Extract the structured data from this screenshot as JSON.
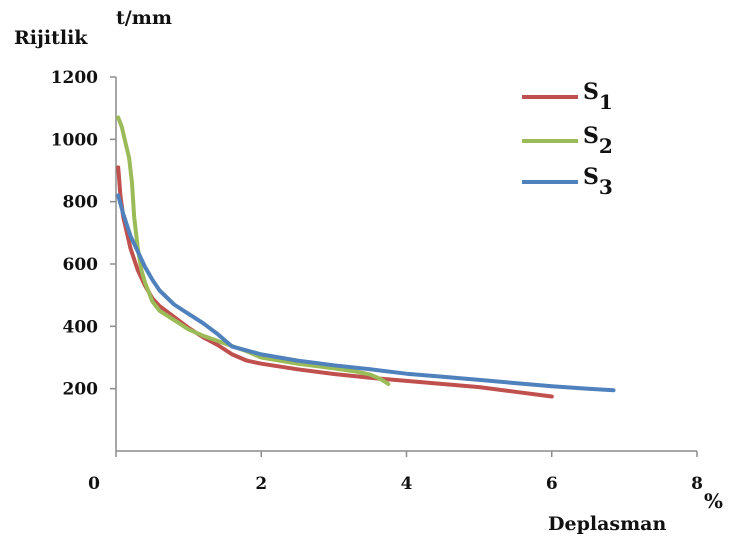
{
  "chart_data": {
    "type": "line",
    "title": "",
    "ylabel": "Rijitlik",
    "ylabel_unit": "t/mm",
    "xlabel": "Deplasman",
    "xlabel_unit": "%",
    "xlim": [
      0,
      8
    ],
    "ylim": [
      0,
      1200
    ],
    "x_ticks": [
      0,
      2,
      4,
      6,
      8
    ],
    "y_ticks": [
      200,
      400,
      600,
      800,
      1000,
      1200
    ],
    "grid": false,
    "legend_position": "top-right",
    "series": [
      {
        "name": "S",
        "subscript": "1",
        "color": "#c0504d",
        "x": [
          0.03,
          0.06,
          0.1,
          0.15,
          0.2,
          0.3,
          0.4,
          0.5,
          0.6,
          0.8,
          1.0,
          1.2,
          1.4,
          1.6,
          1.8,
          2.0,
          2.5,
          3.0,
          3.5,
          4.0,
          4.5,
          5.0,
          5.5,
          6.0
        ],
        "y": [
          910,
          820,
          750,
          700,
          650,
          580,
          530,
          490,
          465,
          430,
          395,
          365,
          340,
          310,
          290,
          280,
          262,
          247,
          235,
          225,
          215,
          205,
          190,
          175
        ]
      },
      {
        "name": "S",
        "subscript": "2",
        "color": "#9bbb59",
        "x": [
          0.03,
          0.08,
          0.13,
          0.18,
          0.22,
          0.25,
          0.3,
          0.35,
          0.4,
          0.5,
          0.6,
          0.8,
          1.0,
          1.2,
          1.5,
          1.8,
          2.0,
          2.5,
          3.0,
          3.3,
          3.5,
          3.65,
          3.75
        ],
        "y": [
          1070,
          1040,
          990,
          940,
          860,
          750,
          650,
          580,
          540,
          480,
          450,
          420,
          390,
          370,
          345,
          320,
          300,
          280,
          265,
          255,
          245,
          230,
          215
        ]
      },
      {
        "name": "S",
        "subscript": "3",
        "color": "#4f81bd",
        "x": [
          0.03,
          0.1,
          0.2,
          0.3,
          0.4,
          0.5,
          0.6,
          0.8,
          1.0,
          1.2,
          1.4,
          1.6,
          2.0,
          2.5,
          3.0,
          3.5,
          4.0,
          4.5,
          5.0,
          5.5,
          6.0,
          6.5,
          6.85
        ],
        "y": [
          820,
          760,
          690,
          640,
          590,
          550,
          515,
          470,
          440,
          410,
          375,
          335,
          310,
          290,
          275,
          262,
          248,
          238,
          228,
          218,
          208,
          200,
          195
        ]
      }
    ]
  }
}
